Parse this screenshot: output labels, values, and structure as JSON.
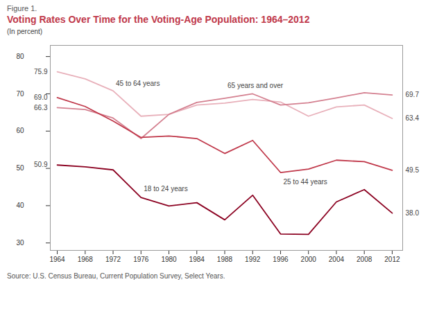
{
  "chart_data": {
    "type": "line",
    "figure_label": "Figure 1.",
    "title": "Voting Rates Over Time for the Voting-Age Population: 1964–2012",
    "ylabel": "(In percent)",
    "source": "Source: U.S. Census Bureau, Current Population Survey, Select Years.",
    "x": [
      1964,
      1968,
      1972,
      1976,
      1980,
      1984,
      1988,
      1992,
      1996,
      2000,
      2004,
      2008,
      2012
    ],
    "xlim": [
      1963,
      2013.5
    ],
    "xticks": [
      1964,
      1968,
      1972,
      1976,
      1980,
      1984,
      1988,
      1992,
      1996,
      2000,
      2004,
      2008,
      2012
    ],
    "ylim": [
      28,
      83
    ],
    "yticks": [
      30,
      40,
      50,
      60,
      70,
      80
    ],
    "grid": false,
    "series": [
      {
        "name": "45 to 64 years",
        "color": "#e8b0ba",
        "values": [
          75.9,
          74.0,
          70.8,
          64.0,
          64.5,
          67.0,
          67.5,
          68.5,
          67.8,
          64.0,
          66.5,
          67.0,
          63.4
        ],
        "value_labels": [
          "75.9",
          null,
          null,
          null,
          null,
          null,
          null,
          null,
          null,
          null,
          null,
          null,
          "63.4"
        ]
      },
      {
        "name": "65 years and over",
        "color": "#d48090",
        "values": [
          66.3,
          65.8,
          63.5,
          58.0,
          64.5,
          67.7,
          68.8,
          70.0,
          67.0,
          67.6,
          68.9,
          70.3,
          69.7
        ],
        "value_labels": [
          "66.3",
          null,
          null,
          null,
          null,
          null,
          null,
          null,
          null,
          null,
          null,
          null,
          "69.7"
        ]
      },
      {
        "name": "25 to 44 years",
        "color": "#c0384a",
        "values": [
          69.0,
          66.6,
          62.7,
          58.3,
          58.7,
          58.0,
          54.0,
          57.5,
          48.9,
          49.8,
          52.2,
          51.8,
          49.5
        ],
        "value_labels": [
          "69.0",
          null,
          null,
          null,
          null,
          null,
          null,
          null,
          null,
          null,
          null,
          null,
          "49.5"
        ]
      },
      {
        "name": "18 to 24 years",
        "color": "#8b0020",
        "values": [
          50.9,
          50.4,
          49.6,
          42.2,
          39.9,
          40.8,
          36.2,
          42.8,
          32.4,
          32.3,
          41.0,
          44.3,
          38.0
        ],
        "value_labels": [
          "50.9",
          null,
          null,
          null,
          null,
          null,
          null,
          null,
          null,
          null,
          null,
          null,
          "38.0"
        ]
      }
    ]
  }
}
